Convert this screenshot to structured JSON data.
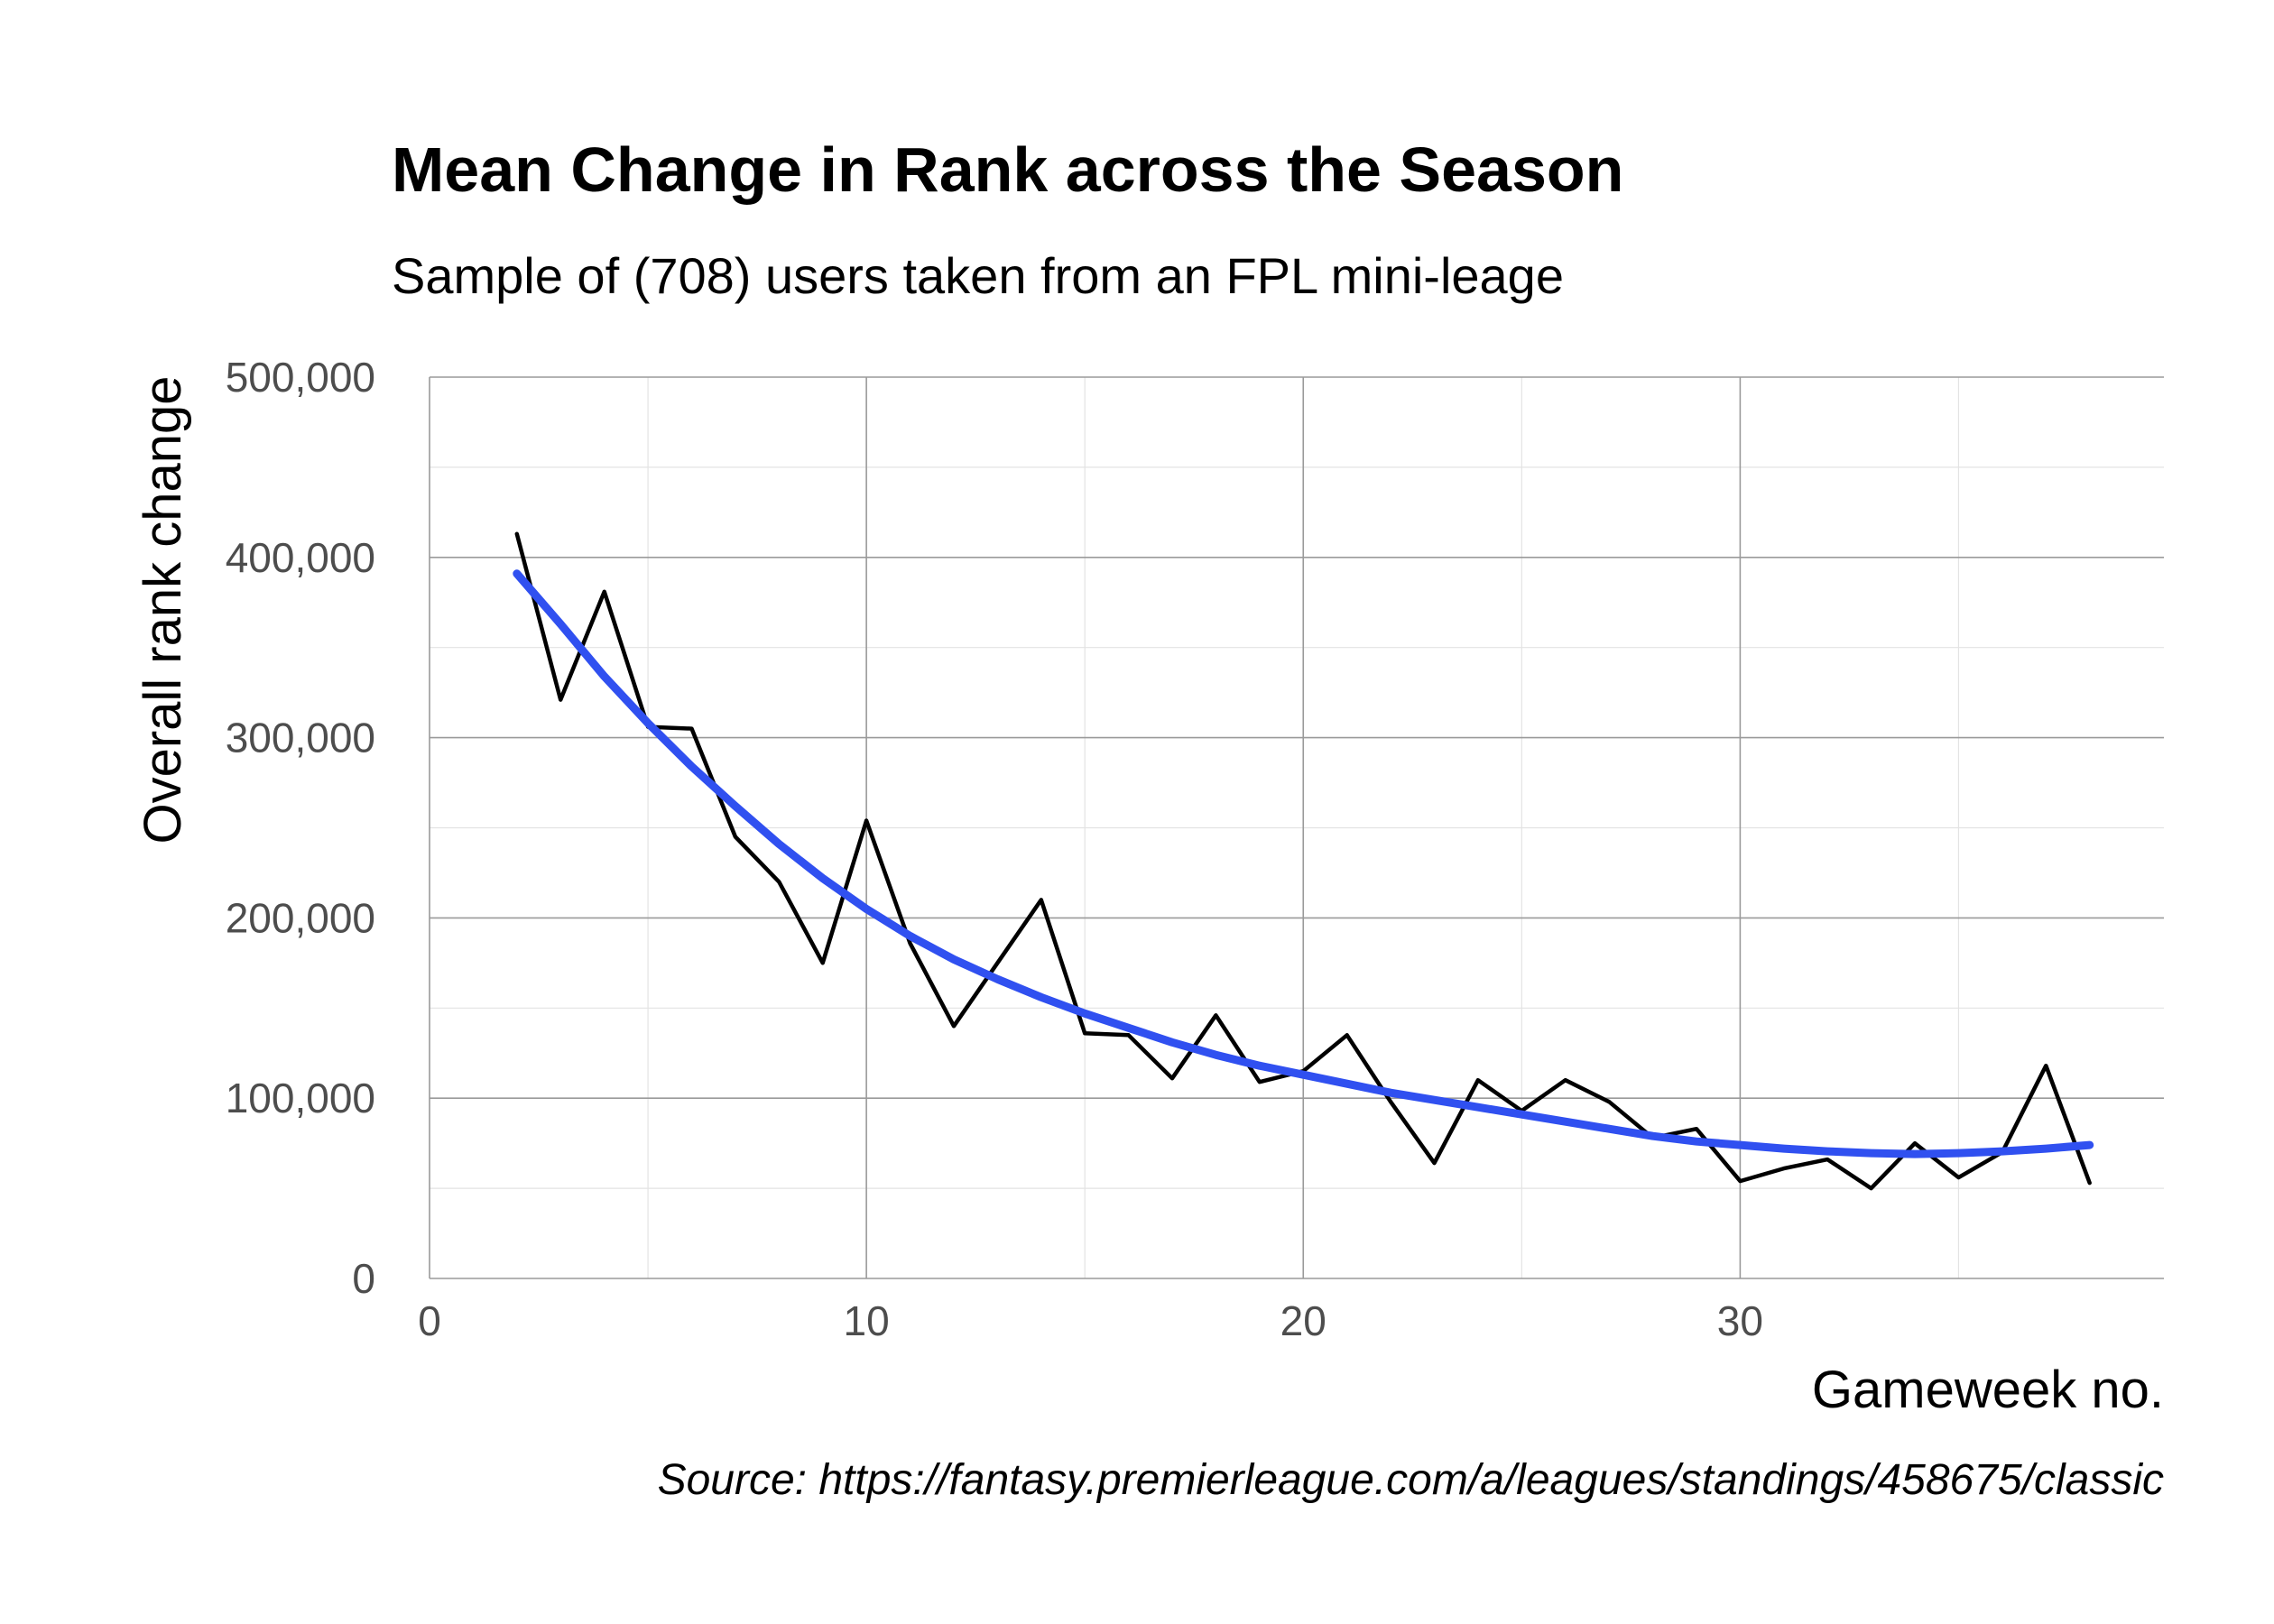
{
  "chart_data": {
    "type": "line",
    "title": "Mean Change in Rank across the Season",
    "subtitle": "Sample of (708) users taken from an FPL mini-leage",
    "xlabel": "Gameweek no.",
    "ylabel": "Overall rank change",
    "caption": "Source: https://fantasy.premierleague.com/a/leagues/standings/458675/classic",
    "xlim": [
      0,
      39.7
    ],
    "ylim": [
      0,
      500000
    ],
    "x_ticks": [
      0,
      10,
      20,
      30
    ],
    "x_tick_labels": [
      "0",
      "10",
      "20",
      "30"
    ],
    "y_ticks": [
      0,
      100000,
      200000,
      300000,
      400000,
      500000
    ],
    "y_tick_labels": [
      "0",
      "100,000",
      "200,000",
      "300,000",
      "400,000",
      "500,000"
    ],
    "grid": true,
    "legend": "none",
    "series": [
      {
        "kind": "line",
        "color": "#000000",
        "x": [
          2,
          3,
          4,
          5,
          6,
          7,
          8,
          9,
          10,
          11,
          12,
          13,
          14,
          15,
          16,
          17,
          18,
          19,
          20,
          21,
          22,
          23,
          24,
          25,
          26,
          27,
          28,
          29,
          30,
          31,
          32,
          33,
          34,
          35,
          36,
          37,
          38
        ],
        "values": [
          413000,
          321000,
          381000,
          306000,
          305000,
          245000,
          220000,
          175000,
          254000,
          186000,
          140000,
          175000,
          210000,
          136000,
          135000,
          111000,
          146000,
          109000,
          115000,
          135000,
          98000,
          64000,
          110000,
          93000,
          110000,
          98000,
          78000,
          83000,
          54000,
          61000,
          66000,
          50000,
          75000,
          56000,
          70000,
          118000,
          53000
        ]
      },
      {
        "kind": "smooth",
        "color": "#3050f0",
        "x": [
          2,
          3,
          4,
          5,
          6,
          7,
          8,
          9,
          10,
          11,
          12,
          13,
          14,
          15,
          16,
          17,
          18,
          19,
          20,
          21,
          22,
          23,
          24,
          25,
          26,
          27,
          28,
          29,
          30,
          31,
          32,
          33,
          34,
          35,
          36,
          37,
          38
        ],
        "values": [
          391000,
          363000,
          334000,
          308000,
          284000,
          262000,
          241000,
          222000,
          205000,
          190000,
          177000,
          166000,
          156000,
          147000,
          139000,
          131000,
          124000,
          118000,
          113000,
          108000,
          103000,
          99000,
          95000,
          91000,
          87000,
          83000,
          79000,
          76000,
          74000,
          72000,
          70500,
          69500,
          69000,
          69500,
          70500,
          72000,
          74000
        ]
      }
    ]
  }
}
